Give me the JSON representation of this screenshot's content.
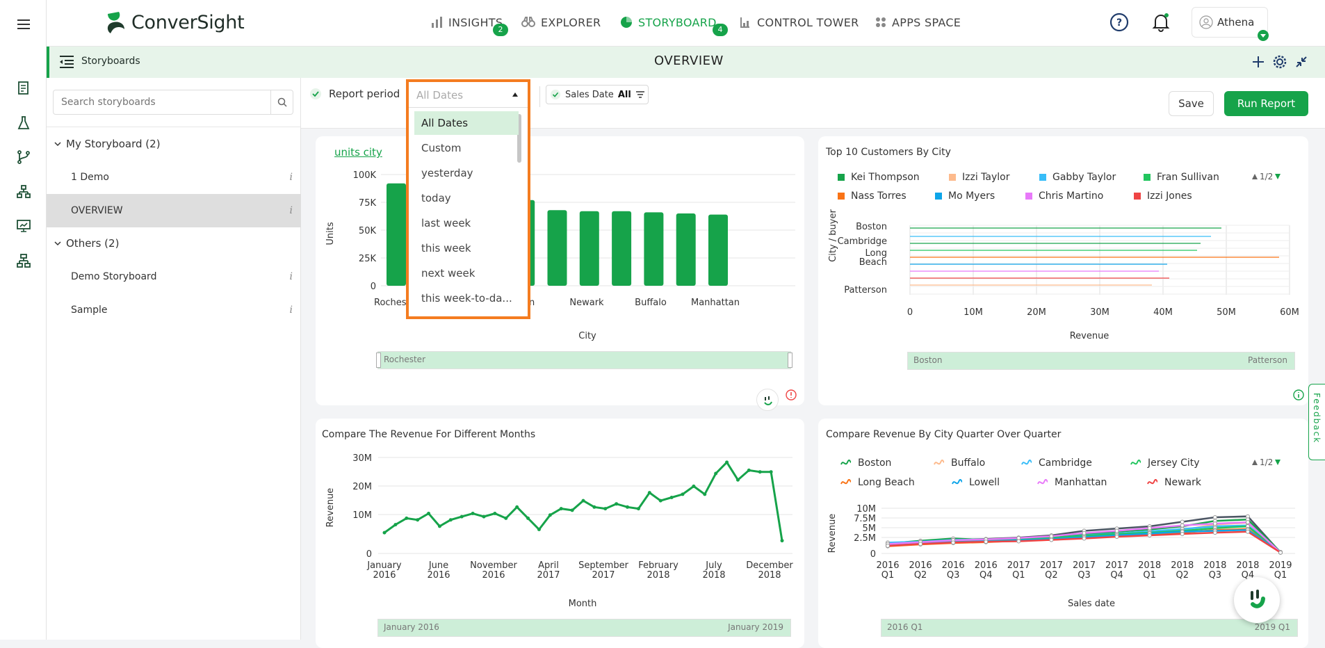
{
  "app": {
    "brand": "ConverSight",
    "colors": {
      "accent": "#16a34a",
      "highlight": "#f47c20",
      "header_bg": "#e7f4ea"
    }
  },
  "rail": {
    "icons": [
      "menu-icon",
      "report-icon",
      "flask-icon",
      "branch-icon",
      "org-chart-icon",
      "presentation-icon",
      "hierarchy-icon"
    ]
  },
  "nav": {
    "items": [
      {
        "label": "INSIGHTS",
        "badge": "2",
        "icon": "bar-chart-icon"
      },
      {
        "label": "EXPLORER",
        "icon": "binoculars-icon"
      },
      {
        "label": "STORYBOARD",
        "badge": "4",
        "icon": "pie-chart-icon",
        "active": true
      },
      {
        "label": "CONTROL TOWER",
        "icon": "tower-icon"
      },
      {
        "label": "APPS SPACE",
        "icon": "grid-icon"
      }
    ],
    "user": "Athena"
  },
  "storyboard_header": {
    "label": "Storyboards",
    "title": "OVERVIEW"
  },
  "sidebar": {
    "search_placeholder": "Search storyboards",
    "groups": [
      {
        "label": "My Storyboard (2)",
        "items": [
          "1 Demo",
          "OVERVIEW"
        ]
      },
      {
        "label": "Others (2)",
        "items": [
          "Demo Storyboard",
          "Sample"
        ]
      }
    ],
    "info": "i"
  },
  "toolbar": {
    "report_period_label": "Report period",
    "period_value": "All Dates",
    "sales_date_label": "Sales Date",
    "sales_date_value": "All",
    "save_label": "Save",
    "run_label": "Run Report"
  },
  "dropdown": {
    "options": [
      "All Dates",
      "Custom",
      "yesterday",
      "today",
      "last week",
      "this week",
      "next week",
      "this week-to-da..."
    ],
    "selected": "All Dates"
  },
  "cards": {
    "units_city": {
      "title_link": "units city",
      "ylabel": "Units",
      "xlabel": "City",
      "yticks": [
        "100K",
        "75K",
        "50K",
        "25K",
        "0"
      ],
      "xticks": [
        "Roches",
        "on",
        "Newark",
        "Buffalo",
        "Manhattan"
      ],
      "slider_label": "Rochester"
    },
    "top_customers": {
      "title": "Top 10 Customers By City",
      "legend": [
        {
          "name": "Kei Thompson",
          "color": "#16a34a"
        },
        {
          "name": "Izzi Taylor",
          "color": "#fdba8c"
        },
        {
          "name": "Gabby Taylor",
          "color": "#38bdf8"
        },
        {
          "name": "Fran Sullivan",
          "color": "#22c55e"
        },
        {
          "name": "Nass Torres",
          "color": "#f97316"
        },
        {
          "name": "Mo Myers",
          "color": "#0ea5e9"
        },
        {
          "name": "Chris Martino",
          "color": "#e879f9"
        },
        {
          "name": "Izzi Jones",
          "color": "#ef4444"
        }
      ],
      "pager": "1/2",
      "ylabel": "City / buyer",
      "xlabel": "Revenue",
      "yticks": [
        "Boston",
        "Cambridge",
        "Long",
        "Beach",
        "Patterson"
      ],
      "xticks": [
        "0",
        "10M",
        "20M",
        "30M",
        "40M",
        "50M",
        "60M"
      ],
      "slider_left": "Boston",
      "slider_right": "Patterson"
    },
    "revenue_months": {
      "title": "Compare The Revenue For Different Months",
      "ylabel": "Revenue",
      "xlabel": "Month",
      "yticks": [
        "30M",
        "20M",
        "10M",
        "0"
      ],
      "xticks": [
        [
          "January",
          "2016"
        ],
        [
          "June",
          "2016"
        ],
        [
          "November",
          "2016"
        ],
        [
          "April",
          "2017"
        ],
        [
          "September",
          "2017"
        ],
        [
          "February",
          "2018"
        ],
        [
          "July",
          "2018"
        ],
        [
          "December",
          "2018"
        ]
      ],
      "slider_left": "January 2016",
      "slider_right": "January 2019"
    },
    "revenue_quarter": {
      "title": "Compare Revenue By City Quarter Over Quarter",
      "legend": [
        {
          "name": "Boston",
          "color": "#16a34a"
        },
        {
          "name": "Buffalo",
          "color": "#fdba8c"
        },
        {
          "name": "Cambridge",
          "color": "#38bdf8"
        },
        {
          "name": "Jersey City",
          "color": "#22c55e"
        },
        {
          "name": "Long Beach",
          "color": "#f97316"
        },
        {
          "name": "Lowell",
          "color": "#0ea5e9"
        },
        {
          "name": "Manhattan",
          "color": "#e879f9"
        },
        {
          "name": "Newark",
          "color": "#ef4444"
        }
      ],
      "pager": "1/2",
      "ylabel": "Revenue",
      "xlabel": "Sales date",
      "yticks": [
        "10M",
        "7.5M",
        "5M",
        "2.5M",
        "0"
      ],
      "xticks": [
        [
          "2016",
          "Q1"
        ],
        [
          "2016",
          "Q2"
        ],
        [
          "2016",
          "Q3"
        ],
        [
          "2016",
          "Q4"
        ],
        [
          "2017",
          "Q1"
        ],
        [
          "2017",
          "Q2"
        ],
        [
          "2017",
          "Q3"
        ],
        [
          "2017",
          "Q4"
        ],
        [
          "2018",
          "Q1"
        ],
        [
          "2018",
          "Q2"
        ],
        [
          "2018",
          "Q3"
        ],
        [
          "2018",
          "Q4"
        ],
        [
          "2019",
          "Q1"
        ]
      ],
      "slider_left": "2016 Q1",
      "slider_right": "2019 Q1"
    }
  },
  "feedback_label": "Feedback",
  "chart_data": [
    {
      "type": "bar",
      "categories": [
        "Rochester",
        "",
        "",
        "",
        "",
        "Newark",
        "",
        "Buffalo",
        "",
        "Manhattan",
        ""
      ],
      "values": [
        92000,
        88000,
        84000,
        80000,
        77000,
        68000,
        67000,
        67000,
        66000,
        65000,
        64000
      ],
      "xlabel": "City",
      "ylabel": "Units",
      "ylim": [
        0,
        100000
      ]
    },
    {
      "type": "line",
      "x": [
        "Jan 2016",
        "Feb 2016",
        "Mar 2016",
        "Apr 2016",
        "May 2016",
        "Jun 2016",
        "Jul 2016",
        "Aug 2016",
        "Sep 2016",
        "Oct 2016",
        "Nov 2016",
        "Dec 2016",
        "Jan 2017",
        "Feb 2017",
        "Mar 2017",
        "Apr 2017",
        "May 2017",
        "Jun 2017",
        "Jul 2017",
        "Aug 2017",
        "Sep 2017",
        "Oct 2017",
        "Nov 2017",
        "Dec 2017",
        "Jan 2018",
        "Feb 2018",
        "Mar 2018",
        "Apr 2018",
        "May 2018",
        "Jun 2018",
        "Jul 2018",
        "Aug 2018",
        "Sep 2018",
        "Oct 2018",
        "Nov 2018",
        "Dec 2018",
        "Jan 2019"
      ],
      "values": [
        6.5,
        9,
        11,
        10.5,
        12.5,
        8.5,
        10.5,
        11.5,
        12.5,
        11.5,
        12.5,
        11,
        14.5,
        11,
        7.5,
        12,
        14,
        13.5,
        16.5,
        14.5,
        14,
        15.5,
        14.5,
        14,
        19,
        16.5,
        17.5,
        18.5,
        21,
        18.5,
        25,
        28.5,
        23,
        26,
        25.5,
        25.5,
        4
      ],
      "xlabel": "Month",
      "ylabel": "Revenue",
      "ylim": [
        0,
        30
      ]
    }
  ]
}
